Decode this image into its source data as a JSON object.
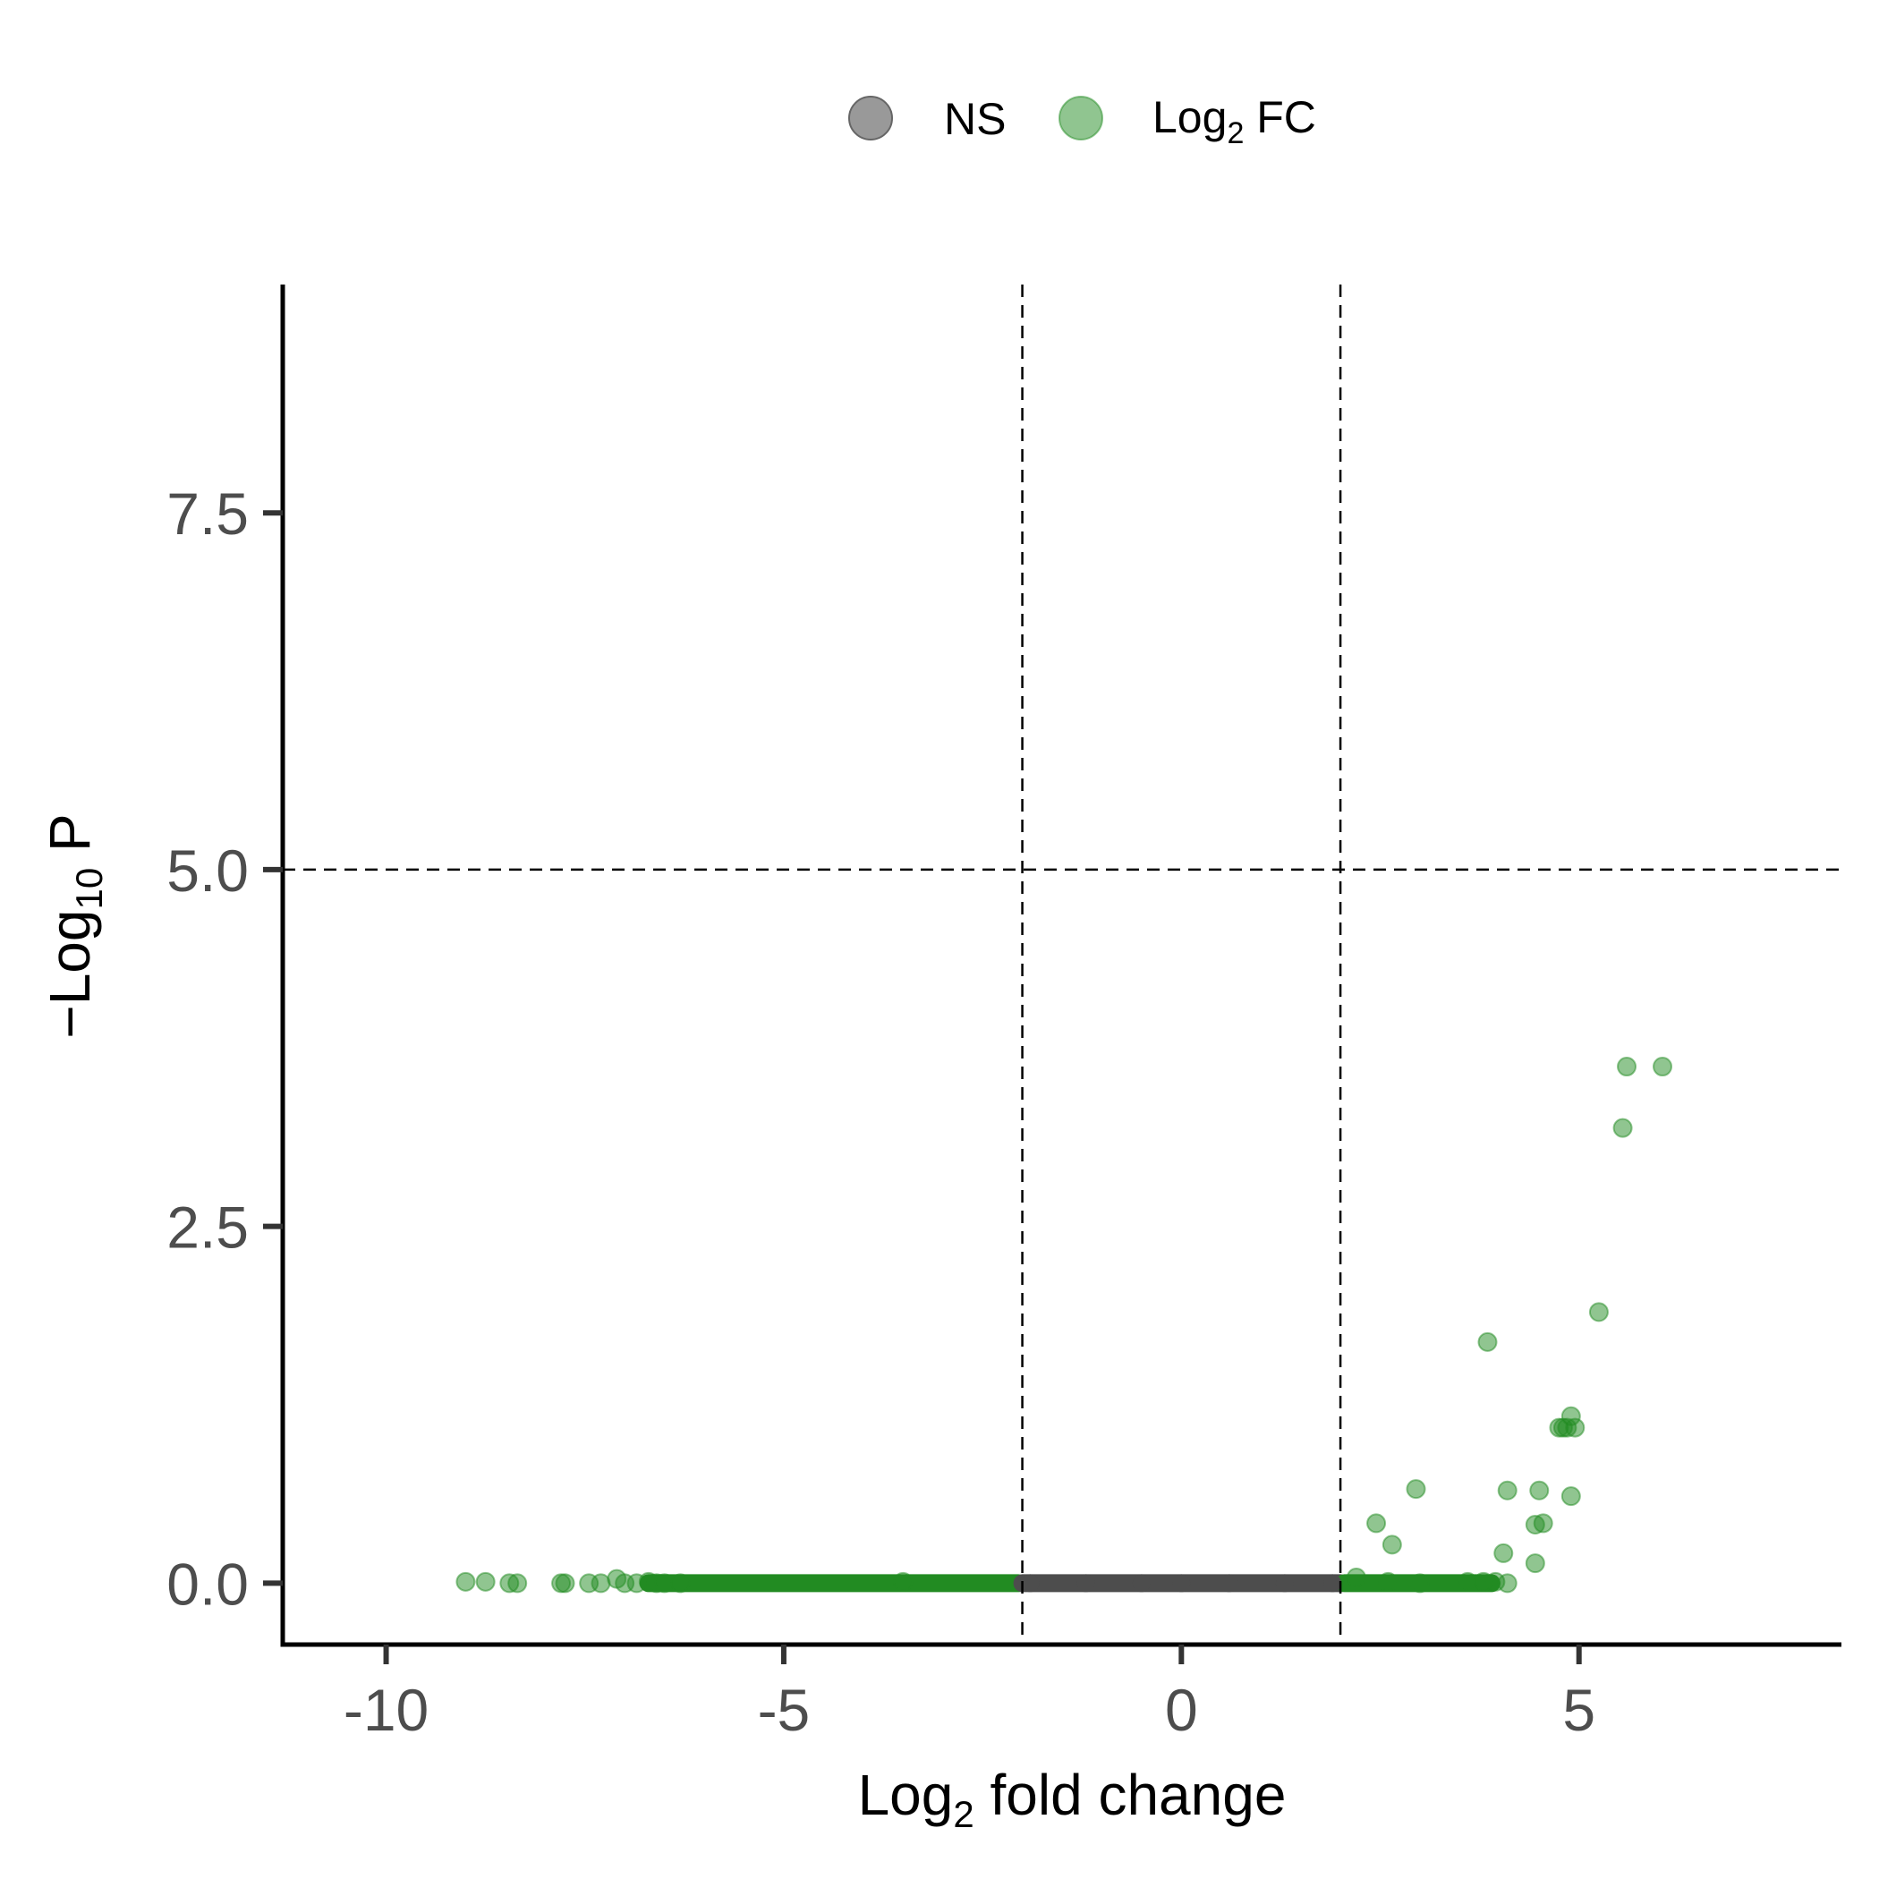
{
  "chart_data": {
    "type": "scatter",
    "title": "",
    "legend": {
      "placement": "top",
      "items": [
        {
          "label": "NS",
          "color": "#999999"
        },
        {
          "label_main": "Log",
          "label_sub": "2",
          "label_rest": " FC",
          "color": "#228B22"
        }
      ]
    },
    "xlabel": {
      "main": "Log",
      "sub": "2",
      "rest": " fold change"
    },
    "ylabel": {
      "main": "−Log",
      "sub": "10",
      "rest": " P"
    },
    "xlim": [
      -11.3,
      8.3
    ],
    "ylim": [
      -0.43,
      9.1
    ],
    "xticks": [
      -10,
      -5,
      0,
      5
    ],
    "xtick_labels": [
      "-10",
      "-5",
      "0",
      "5"
    ],
    "yticks": [
      0,
      2.5,
      5,
      7.5
    ],
    "ytick_labels": [
      "0.0",
      "2.5",
      "5.0",
      "7.5"
    ],
    "grid": false,
    "cutoffs": {
      "fc": [
        -2,
        2
      ],
      "p": 5
    },
    "colors": {
      "ns": "#4d4d4d",
      "fc": "#228B22",
      "axis": "#000000",
      "ticks": "#333333"
    },
    "dense_bands": [
      {
        "series": "Log2 FC",
        "x_range": [
          -6.7,
          -2.05
        ],
        "y": 0.0
      },
      {
        "series": "NS",
        "x_range": [
          -2.0,
          2.0
        ],
        "y": 0.0
      },
      {
        "series": "Log2 FC",
        "x_range": [
          2.05,
          3.9
        ],
        "y": 0.0
      }
    ],
    "series": [
      {
        "name": "NS",
        "points": [
          [
            -1.9,
            0.0
          ],
          [
            -1.2,
            0.0
          ],
          [
            -0.5,
            0.0
          ],
          [
            0.0,
            0.0
          ],
          [
            0.6,
            0.0
          ],
          [
            1.3,
            0.0
          ],
          [
            1.9,
            0.0
          ]
        ]
      },
      {
        "name": "Log2 FC",
        "points": [
          [
            -9.0,
            0.01
          ],
          [
            -8.75,
            0.01
          ],
          [
            -8.45,
            0.0
          ],
          [
            -8.35,
            0.0
          ],
          [
            -7.8,
            0.0
          ],
          [
            -7.75,
            0.0
          ],
          [
            -7.45,
            0.0
          ],
          [
            -7.3,
            0.0
          ],
          [
            -7.1,
            0.03
          ],
          [
            -7.0,
            0.0
          ],
          [
            -6.85,
            0.0
          ],
          [
            -6.7,
            0.01
          ],
          [
            -6.6,
            0.0
          ],
          [
            -6.5,
            0.0
          ],
          [
            -6.3,
            0.0
          ],
          [
            -3.5,
            0.01
          ],
          [
            2.2,
            0.04
          ],
          [
            2.6,
            0.01
          ],
          [
            3.0,
            0.0
          ],
          [
            3.6,
            0.01
          ],
          [
            3.8,
            0.01
          ],
          [
            3.95,
            0.01
          ],
          [
            4.1,
            0.0
          ],
          [
            2.45,
            0.42
          ],
          [
            2.65,
            0.27
          ],
          [
            2.95,
            0.66
          ],
          [
            3.85,
            1.69
          ],
          [
            4.05,
            0.21
          ],
          [
            4.1,
            0.65
          ],
          [
            4.45,
            0.41
          ],
          [
            4.55,
            0.42
          ],
          [
            4.45,
            0.14
          ],
          [
            4.5,
            0.65
          ],
          [
            4.9,
            0.61
          ],
          [
            4.75,
            1.09
          ],
          [
            4.8,
            1.09
          ],
          [
            4.85,
            1.09
          ],
          [
            4.95,
            1.09
          ],
          [
            4.9,
            1.17
          ],
          [
            5.25,
            1.9
          ],
          [
            5.55,
            3.19
          ],
          [
            5.6,
            3.62
          ],
          [
            6.05,
            3.62
          ]
        ]
      }
    ]
  }
}
